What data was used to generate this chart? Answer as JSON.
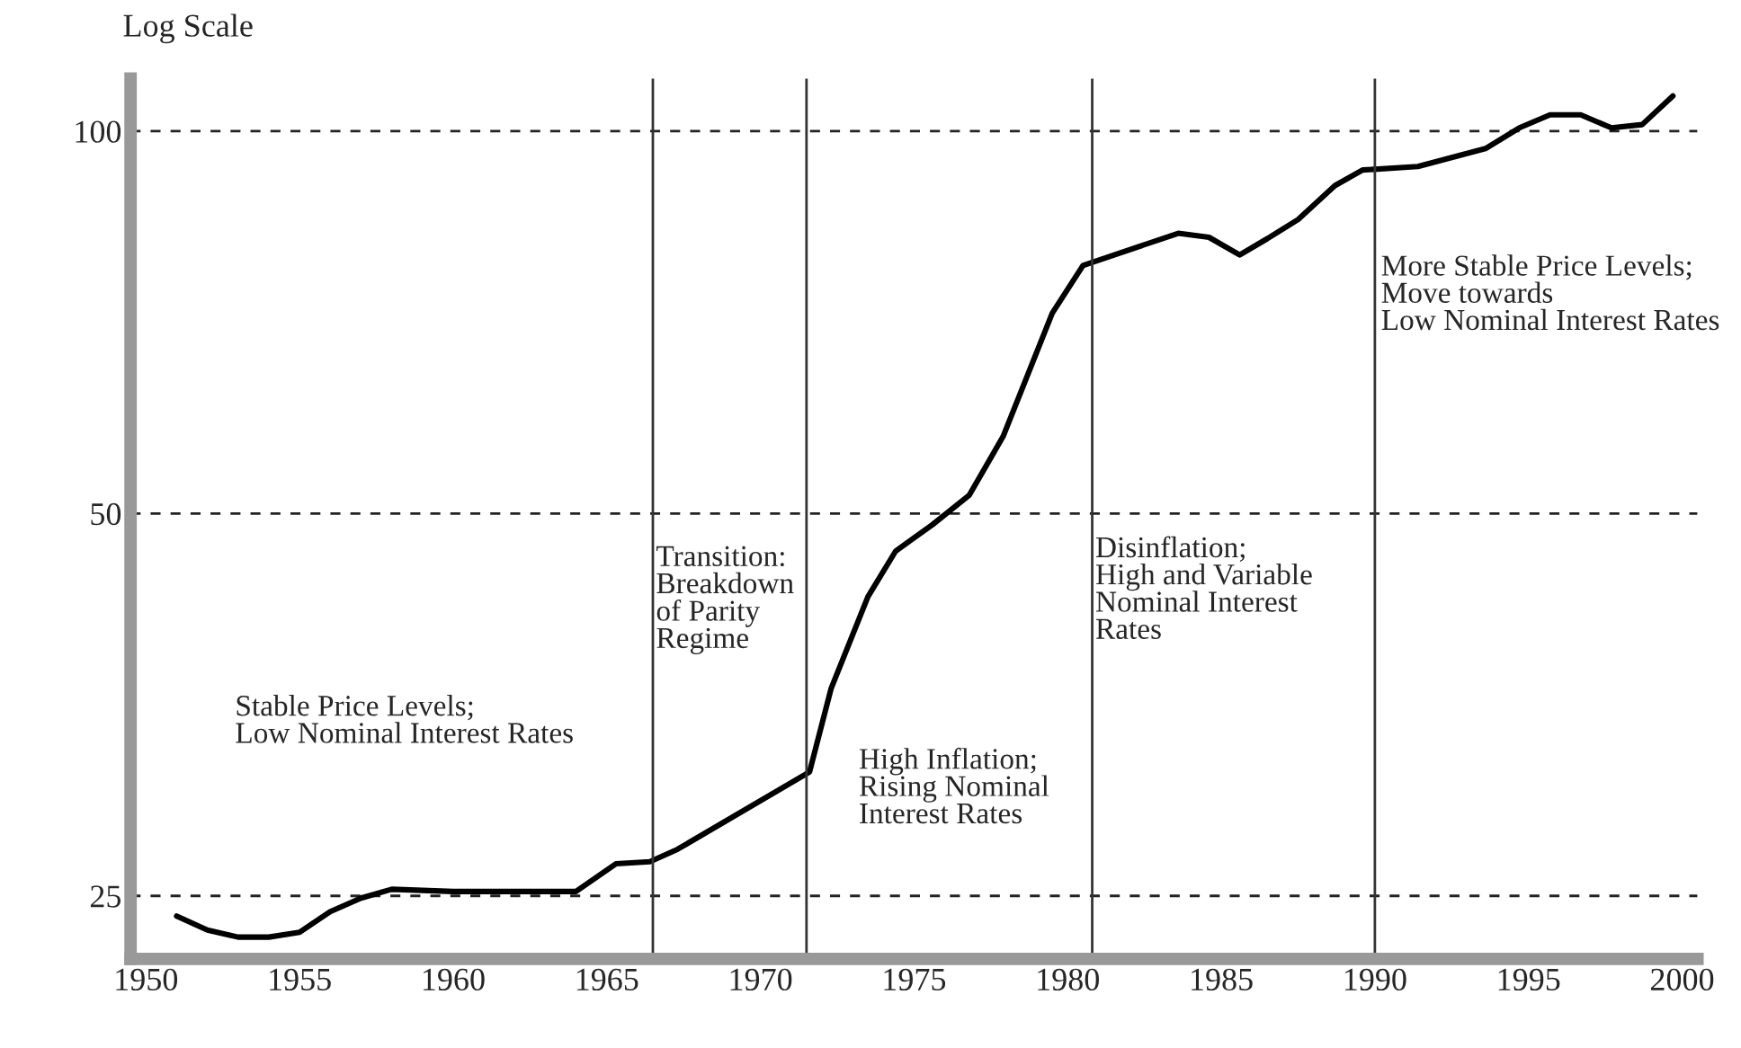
{
  "chart_data": {
    "type": "line",
    "ylabel": "Log Scale",
    "log": "y",
    "grid": "y",
    "x": [
      1951,
      1952,
      1953,
      1954,
      1955,
      1956,
      1957,
      1958,
      1960,
      1964,
      1965.3,
      1966.4,
      1967.3,
      1971.6,
      1972.3,
      1973.5,
      1974.4,
      1975.6,
      1976.8,
      1977.9,
      1979.5,
      1980.5,
      1983.6,
      1984.6,
      1985.6,
      1986.5,
      1987.5,
      1988.7,
      1989.6,
      1991.4,
      1993.6,
      1994.7,
      1995.7,
      1996.7,
      1997.7,
      1998.7,
      1999.7
    ],
    "series": [
      {
        "color": "#000000",
        "values": [
          24.1,
          23.5,
          23.2,
          23.2,
          23.4,
          24.3,
          24.9,
          25.3,
          25.2,
          25.2,
          26.5,
          26.6,
          27.2,
          31.3,
          36.4,
          43,
          46.7,
          49,
          51.7,
          57.5,
          71.9,
          78.4,
          83.1,
          82.5,
          79.9,
          82.3,
          85.2,
          90.6,
          93.2,
          93.8,
          96.9,
          100.6,
          103,
          103,
          100.6,
          101.2,
          106.6
        ]
      }
    ],
    "xlim": [
      1949.5,
      2000.5
    ],
    "xticks": [
      1950,
      1955,
      1960,
      1965,
      1970,
      1975,
      1980,
      1985,
      1990,
      1995,
      2000
    ],
    "ylim": [
      22.3,
      110
    ],
    "yticks": [
      25,
      50,
      100
    ],
    "ref_lines": [
      {
        "axis": "x",
        "value": 1966.5,
        "color": "#333333"
      },
      {
        "axis": "x",
        "value": 1971.5,
        "color": "#333333"
      },
      {
        "axis": "x",
        "value": 1980.8,
        "color": "#333333"
      },
      {
        "axis": "x",
        "value": 1990,
        "color": "#333333"
      }
    ],
    "annotations": [
      "Stable Price Levels;\nLow Nominal Interest Rates",
      "Transition:\nBreakdown\nof Parity\nRegime",
      "High Inflation;\nRising Nominal\nInterest Rates",
      "Disinflation;\nHigh and Variable\nNominal Interest\nRates",
      "More Stable Price Levels;\nMove towards\nLow Nominal Interest Rates"
    ]
  }
}
